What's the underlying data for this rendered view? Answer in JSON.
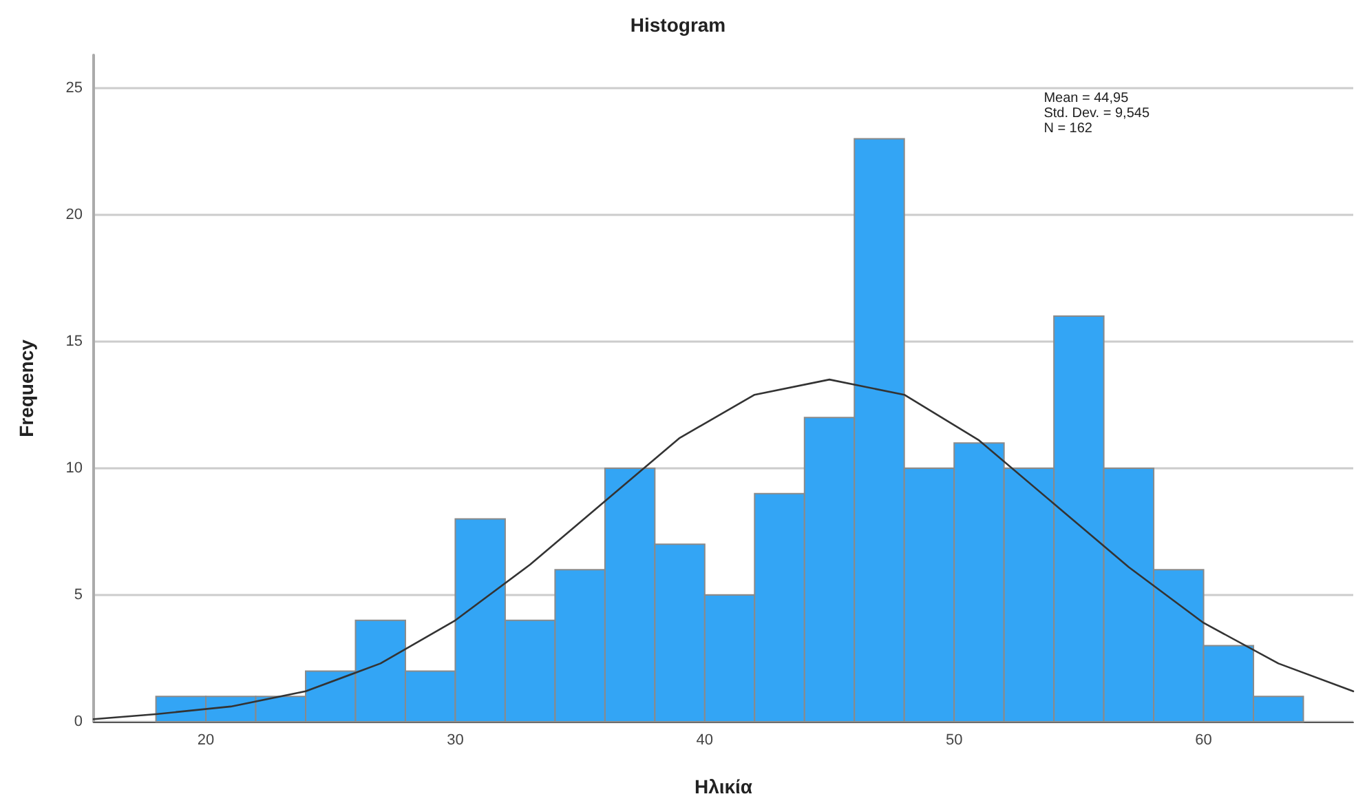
{
  "chart_data": {
    "type": "histogram",
    "title": "Histogram",
    "xlabel": "Ηλικία",
    "ylabel": "Frequency",
    "bins": [
      18,
      20,
      22,
      24,
      26,
      28,
      30,
      32,
      34,
      36,
      38,
      40,
      42,
      44,
      46,
      48,
      50,
      52,
      54,
      56,
      58,
      60,
      62,
      64
    ],
    "values": [
      1,
      1,
      1,
      2,
      4,
      2,
      8,
      4,
      6,
      10,
      7,
      5,
      9,
      12,
      23,
      10,
      11,
      10,
      16,
      10,
      6,
      3,
      1
    ],
    "color": "#33a5f5",
    "series": [
      {
        "type": "line",
        "color": "#333333",
        "x": [
          15.5,
          18,
          21,
          24,
          27,
          30,
          33,
          36,
          39,
          42,
          45,
          48,
          51,
          54,
          57,
          60,
          63,
          66
        ],
        "values": [
          0.1,
          0.3,
          0.6,
          1.2,
          2.3,
          4.0,
          6.2,
          8.7,
          11.2,
          12.9,
          13.5,
          12.9,
          11.1,
          8.6,
          6.1,
          3.9,
          2.3,
          1.2
        ]
      }
    ],
    "annotations": [
      "Mean = 44,95",
      "Std. Dev. = 9,545",
      "N = 162"
    ],
    "xlim": [
      15.5,
      66
    ],
    "xticks": [
      20,
      30,
      40,
      50,
      60
    ],
    "ylim": [
      0,
      26.3
    ],
    "yticks": [
      0,
      5,
      10,
      15,
      20,
      25
    ],
    "grid": "y",
    "marker": "none",
    "line_style": "solid"
  }
}
